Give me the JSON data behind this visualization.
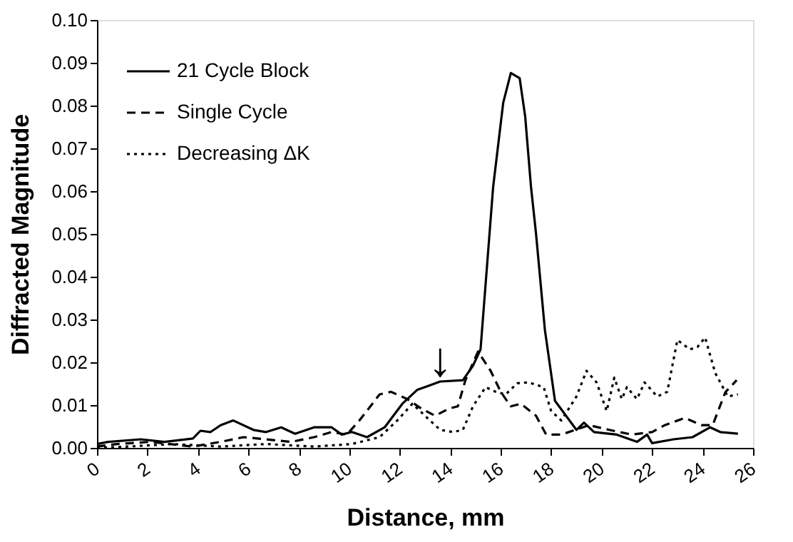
{
  "chart_data": {
    "type": "line",
    "xlabel": "Distance, mm",
    "ylabel": "Diffracted Magnitude",
    "xlim": [
      0,
      26
    ],
    "xticks": [
      0,
      2,
      4,
      6,
      8,
      10,
      12,
      14,
      16,
      18,
      20,
      22,
      24,
      26
    ],
    "ylim": [
      0,
      0.1
    ],
    "yticks": [
      {
        "value": 0,
        "label": "0.00"
      },
      {
        "value": 0.01,
        "label": "0.01"
      },
      {
        "value": 0.02,
        "label": "0.02"
      },
      {
        "value": 0.03,
        "label": "0.03"
      },
      {
        "value": 0.04,
        "label": "0.04"
      },
      {
        "value": 0.05,
        "label": "0.05"
      },
      {
        "value": 0.06,
        "label": "0.06"
      },
      {
        "value": 0.07,
        "label": "0.07"
      },
      {
        "value": 0.08,
        "label": "0.08"
      },
      {
        "value": 0.09,
        "label": "0.09"
      },
      {
        "value": 0.1,
        "label": "0.10"
      }
    ],
    "grid": false,
    "legend": "top left",
    "marker": "none",
    "annotations": [
      {
        "text": "↓",
        "x": 13.6,
        "y": 0.0158
      }
    ],
    "series": [
      {
        "name": "21 Cycle Block",
        "color": "#000000",
        "line_style": "solid",
        "x": [
          0,
          0.44,
          1.74,
          2.67,
          3.8,
          4.1,
          4.5,
          4.9,
          5.4,
          6.2,
          6.7,
          7.3,
          7.85,
          8.6,
          9.3,
          9.7,
          10.1,
          10.7,
          11.4,
          12.1,
          12.7,
          13.1,
          13.6,
          14.5,
          14.9,
          15.2,
          15.7,
          16.1,
          16.4,
          16.75,
          16.97,
          17.2,
          17.4,
          17.75,
          18.15,
          19.0,
          19.3,
          19.7,
          20.6,
          21.4,
          21.8,
          22.0,
          22.85,
          23.6,
          24.3,
          24.7,
          25.4
        ],
        "values": [
          0.0009,
          0.0014,
          0.002,
          0.0014,
          0.0022,
          0.004,
          0.0037,
          0.0053,
          0.0064,
          0.0042,
          0.0037,
          0.0048,
          0.0033,
          0.0048,
          0.0048,
          0.0031,
          0.0037,
          0.0025,
          0.0048,
          0.0103,
          0.0136,
          0.0144,
          0.0155,
          0.0158,
          0.0192,
          0.023,
          0.061,
          0.0807,
          0.0876,
          0.0864,
          0.0774,
          0.061,
          0.05,
          0.0276,
          0.011,
          0.0042,
          0.0059,
          0.0037,
          0.0031,
          0.0014,
          0.0031,
          0.0011,
          0.002,
          0.0025,
          0.0048,
          0.0037,
          0.0033
        ]
      },
      {
        "name": "Single Cycle",
        "color": "#000000",
        "line_style": "dashed",
        "x": [
          0,
          0.8,
          2.1,
          3.8,
          4.9,
          5.8,
          6.7,
          7.7,
          8.6,
          9.3,
          9.9,
          10.4,
          11.2,
          11.65,
          12.3,
          12.85,
          13.4,
          13.96,
          14.3,
          14.6,
          15.1,
          15.6,
          16.0,
          16.4,
          16.8,
          17.4,
          17.8,
          18.4,
          19.5,
          20.3,
          21.2,
          22.0,
          22.5,
          23.3,
          23.96,
          24.4,
          24.9,
          25.35
        ],
        "values": [
          0.0003,
          0.0009,
          0.0014,
          0.0003,
          0.0014,
          0.0025,
          0.002,
          0.0014,
          0.0025,
          0.0037,
          0.0031,
          0.0064,
          0.0125,
          0.0131,
          0.0114,
          0.0092,
          0.0075,
          0.0092,
          0.0097,
          0.0158,
          0.0225,
          0.018,
          0.0131,
          0.0097,
          0.0103,
          0.0075,
          0.0031,
          0.0031,
          0.0053,
          0.0042,
          0.0031,
          0.0037,
          0.0053,
          0.007,
          0.0053,
          0.0053,
          0.013,
          0.0158
        ]
      },
      {
        "name": "Decreasing ΔK",
        "color": "#000000",
        "line_style": "dotted",
        "x": [
          0,
          1.2,
          3.0,
          4.9,
          6.7,
          8.6,
          10.1,
          11.2,
          11.9,
          12.5,
          13.0,
          13.6,
          14.1,
          14.5,
          14.9,
          15.4,
          15.8,
          16.2,
          16.65,
          17.1,
          17.7,
          18.0,
          18.4,
          19.0,
          19.4,
          19.8,
          20.2,
          20.5,
          20.8,
          21.0,
          21.4,
          21.7,
          22.2,
          22.6,
          23.0,
          23.5,
          23.8,
          24.1,
          24.5,
          25.0,
          25.4
        ],
        "values": [
          0,
          0.0003,
          0.0009,
          0.0003,
          0.0009,
          0.0003,
          0.0009,
          0.0025,
          0.0064,
          0.0103,
          0.0075,
          0.0042,
          0.0037,
          0.0042,
          0.0097,
          0.0142,
          0.0131,
          0.0125,
          0.0151,
          0.0153,
          0.0142,
          0.0086,
          0.0064,
          0.012,
          0.018,
          0.0153,
          0.0086,
          0.0164,
          0.0114,
          0.0142,
          0.0114,
          0.0153,
          0.012,
          0.0131,
          0.0252,
          0.023,
          0.0236,
          0.0258,
          0.0175,
          0.012,
          0.0125
        ]
      }
    ]
  }
}
